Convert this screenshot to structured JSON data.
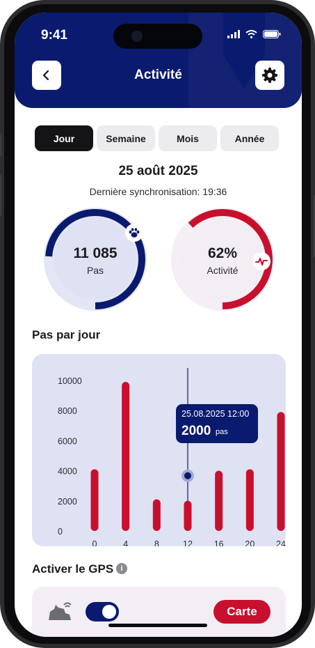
{
  "status_bar": {
    "time": "9:41"
  },
  "header": {
    "title": "Activité",
    "back_icon": "chevron-left-icon",
    "settings_icon": "gear-icon",
    "background": "#0a1a6e"
  },
  "tabs": [
    {
      "label": "Jour",
      "active": true
    },
    {
      "label": "Semaine",
      "active": false
    },
    {
      "label": "Mois",
      "active": false
    },
    {
      "label": "Année",
      "active": false
    }
  ],
  "date": "25 août 2025",
  "sync_text": "Dernière synchronisation: 19:36",
  "rings": {
    "steps": {
      "value": "11 085",
      "label": "Pas",
      "progress": 0.74,
      "color": "#0a1a6e",
      "icon": "paw-icon"
    },
    "activity": {
      "value": "62%",
      "label": "Activité",
      "progress": 0.62,
      "color": "#c8102e",
      "icon": "heartbeat-icon"
    }
  },
  "chart_section_title": "Pas par jour",
  "chart_data": {
    "type": "bar",
    "categories": [
      "0",
      "4",
      "8",
      "12",
      "16",
      "20",
      "24"
    ],
    "values": [
      4100,
      9900,
      2100,
      2000,
      4000,
      4100,
      7900
    ],
    "ylim": [
      0,
      10000
    ],
    "yticks": [
      "0",
      "2000",
      "4000",
      "6000",
      "8000",
      "10000"
    ],
    "bar_color": "#c8102e",
    "selected_index": 3,
    "tooltip": {
      "timestamp": "25.08.2025 12:00",
      "value": "2000",
      "unit": "pas"
    }
  },
  "gps": {
    "title": "Activer le GPS",
    "info_icon": "info-icon",
    "pet_icon": "dog-wifi-icon",
    "enabled": true,
    "button_label": "Carte"
  },
  "colors": {
    "primary": "#0a1a6e",
    "accent": "#c8102e",
    "chart_bg": "#dfe2f3"
  }
}
